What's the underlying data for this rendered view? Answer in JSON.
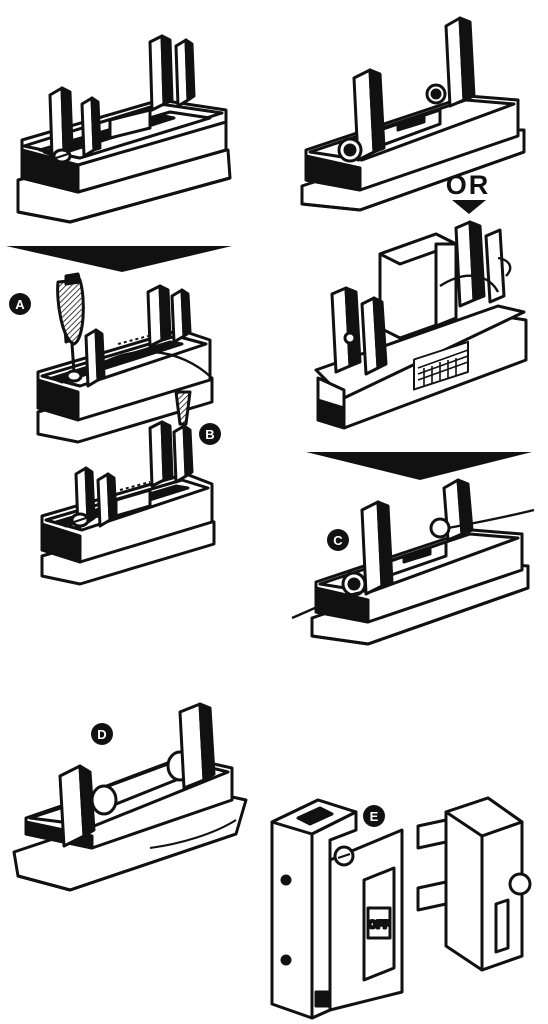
{
  "labels": {
    "or": "OR",
    "a": "A",
    "b": "B",
    "c": "C",
    "d": "D",
    "e": "E",
    "off": "OFF"
  },
  "colors": {
    "ink": "#111111",
    "paper": "#ffffff",
    "shade": "#1a1a1a"
  }
}
